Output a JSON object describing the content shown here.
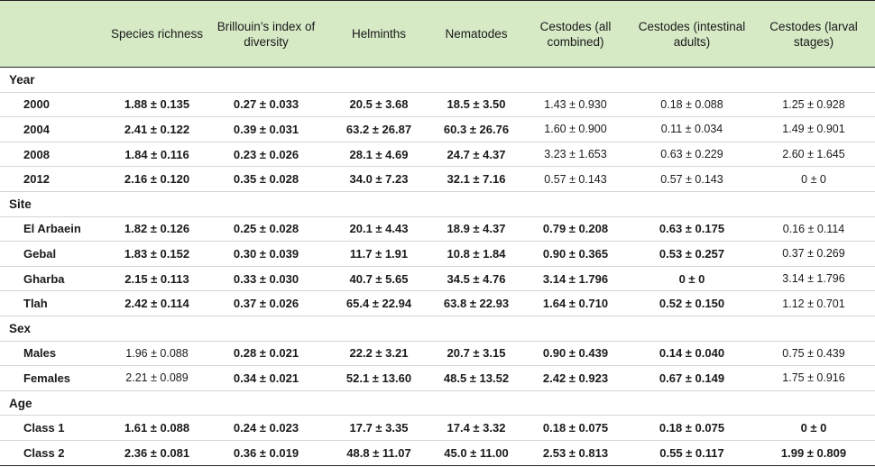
{
  "headers": [
    "",
    "Species richness",
    "Brillouin’s index of diversity",
    "Helminths",
    "Nematodes",
    "Cestodes (all combined)",
    "Cestodes (intestinal adults)",
    "Cestodes (larval stages)"
  ],
  "groups": [
    {
      "title": "Year",
      "rows": [
        {
          "label": "2000",
          "cells": [
            {
              "v": "1.88 ± 0.135",
              "bold": true
            },
            {
              "v": "0.27 ± 0.033",
              "bold": true
            },
            {
              "v": "20.5 ± 3.68",
              "bold": true
            },
            {
              "v": "18.5 ± 3.50",
              "bold": true
            },
            {
              "v": "1.43 ± 0.930",
              "bold": false
            },
            {
              "v": "0.18 ± 0.088",
              "bold": false
            },
            {
              "v": "1.25 ± 0.928",
              "bold": false
            }
          ]
        },
        {
          "label": "2004",
          "cells": [
            {
              "v": "2.41 ± 0.122",
              "bold": true
            },
            {
              "v": "0.39 ± 0.031",
              "bold": true
            },
            {
              "v": "63.2 ± 26.87",
              "bold": true
            },
            {
              "v": "60.3 ± 26.76",
              "bold": true
            },
            {
              "v": "1.60 ± 0.900",
              "bold": false
            },
            {
              "v": "0.11 ± 0.034",
              "bold": false
            },
            {
              "v": "1.49 ± 0.901",
              "bold": false
            }
          ]
        },
        {
          "label": "2008",
          "cells": [
            {
              "v": "1.84 ± 0.116",
              "bold": true
            },
            {
              "v": "0.23 ± 0.026",
              "bold": true
            },
            {
              "v": "28.1 ± 4.69",
              "bold": true
            },
            {
              "v": "24.7 ± 4.37",
              "bold": true
            },
            {
              "v": "3.23 ± 1.653",
              "bold": false
            },
            {
              "v": "0.63 ± 0.229",
              "bold": false
            },
            {
              "v": "2.60 ± 1.645",
              "bold": false
            }
          ]
        },
        {
          "label": "2012",
          "cells": [
            {
              "v": "2.16 ± 0.120",
              "bold": true
            },
            {
              "v": "0.35 ± 0.028",
              "bold": true
            },
            {
              "v": "34.0 ± 7.23",
              "bold": true
            },
            {
              "v": "32.1 ± 7.16",
              "bold": true
            },
            {
              "v": "0.57 ± 0.143",
              "bold": false
            },
            {
              "v": "0.57 ± 0.143",
              "bold": false
            },
            {
              "v": "0 ± 0",
              "bold": false
            }
          ]
        }
      ]
    },
    {
      "title": "Site",
      "rows": [
        {
          "label": "El Arbaein",
          "cells": [
            {
              "v": "1.82 ± 0.126",
              "bold": true
            },
            {
              "v": "0.25 ± 0.028",
              "bold": true
            },
            {
              "v": "20.1 ± 4.43",
              "bold": true
            },
            {
              "v": "18.9 ± 4.37",
              "bold": true
            },
            {
              "v": "0.79 ± 0.208",
              "bold": true
            },
            {
              "v": "0.63 ± 0.175",
              "bold": true
            },
            {
              "v": "0.16 ± 0.114",
              "bold": false
            }
          ]
        },
        {
          "label": "Gebal",
          "cells": [
            {
              "v": "1.83 ± 0.152",
              "bold": true
            },
            {
              "v": "0.30 ± 0.039",
              "bold": true
            },
            {
              "v": "11.7 ± 1.91",
              "bold": true
            },
            {
              "v": "10.8 ± 1.84",
              "bold": true
            },
            {
              "v": "0.90 ± 0.365",
              "bold": true
            },
            {
              "v": "0.53 ± 0.257",
              "bold": true
            },
            {
              "v": "0.37 ± 0.269",
              "bold": false
            }
          ]
        },
        {
          "label": "Gharba",
          "cells": [
            {
              "v": "2.15 ± 0.113",
              "bold": true
            },
            {
              "v": "0.33 ± 0.030",
              "bold": true
            },
            {
              "v": "40.7 ± 5.65",
              "bold": true
            },
            {
              "v": "34.5 ± 4.76",
              "bold": true
            },
            {
              "v": "3.14 ± 1.796",
              "bold": true
            },
            {
              "v": "0 ± 0",
              "bold": true
            },
            {
              "v": "3.14 ± 1.796",
              "bold": false
            }
          ]
        },
        {
          "label": "Tlah",
          "cells": [
            {
              "v": "2.42 ± 0.114",
              "bold": true
            },
            {
              "v": "0.37 ± 0.026",
              "bold": true
            },
            {
              "v": "65.4 ± 22.94",
              "bold": true
            },
            {
              "v": "63.8 ± 22.93",
              "bold": true
            },
            {
              "v": "1.64 ± 0.710",
              "bold": true
            },
            {
              "v": "0.52 ± 0.150",
              "bold": true
            },
            {
              "v": "1.12 ± 0.701",
              "bold": false
            }
          ]
        }
      ]
    },
    {
      "title": "Sex",
      "rows": [
        {
          "label": "Males",
          "cells": [
            {
              "v": "1.96 ± 0.088",
              "bold": false
            },
            {
              "v": "0.28 ± 0.021",
              "bold": true
            },
            {
              "v": "22.2 ± 3.21",
              "bold": true
            },
            {
              "v": "20.7 ± 3.15",
              "bold": true
            },
            {
              "v": "0.90 ± 0.439",
              "bold": true
            },
            {
              "v": "0.14 ± 0.040",
              "bold": true
            },
            {
              "v": "0.75 ± 0.439",
              "bold": false
            }
          ]
        },
        {
          "label": "Females",
          "cells": [
            {
              "v": "2.21 ± 0.089",
              "bold": false
            },
            {
              "v": "0.34 ± 0.021",
              "bold": true
            },
            {
              "v": "52.1 ± 13.60",
              "bold": true
            },
            {
              "v": "48.5 ± 13.52",
              "bold": true
            },
            {
              "v": "2.42 ± 0.923",
              "bold": true
            },
            {
              "v": "0.67 ± 0.149",
              "bold": true
            },
            {
              "v": "1.75 ± 0.916",
              "bold": false
            }
          ]
        }
      ]
    },
    {
      "title": "Age",
      "rows": [
        {
          "label": "Class 1",
          "cells": [
            {
              "v": "1.61 ± 0.088",
              "bold": true
            },
            {
              "v": "0.24 ± 0.023",
              "bold": true
            },
            {
              "v": "17.7 ± 3.35",
              "bold": true
            },
            {
              "v": "17.4 ± 3.32",
              "bold": true
            },
            {
              "v": "0.18 ± 0.075",
              "bold": true
            },
            {
              "v": "0.18 ± 0.075",
              "bold": true
            },
            {
              "v": "0 ± 0",
              "bold": true
            }
          ]
        },
        {
          "label": "Class 2",
          "cells": [
            {
              "v": "2.36 ± 0.081",
              "bold": true
            },
            {
              "v": "0.36 ± 0.019",
              "bold": true
            },
            {
              "v": "48.8 ± 11.07",
              "bold": true
            },
            {
              "v": "45.0 ± 11.00",
              "bold": true
            },
            {
              "v": "2.53 ± 0.813",
              "bold": true
            },
            {
              "v": "0.55 ± 0.117",
              "bold": true
            },
            {
              "v": "1.99 ± 0.809",
              "bold": true
            }
          ]
        }
      ]
    }
  ]
}
